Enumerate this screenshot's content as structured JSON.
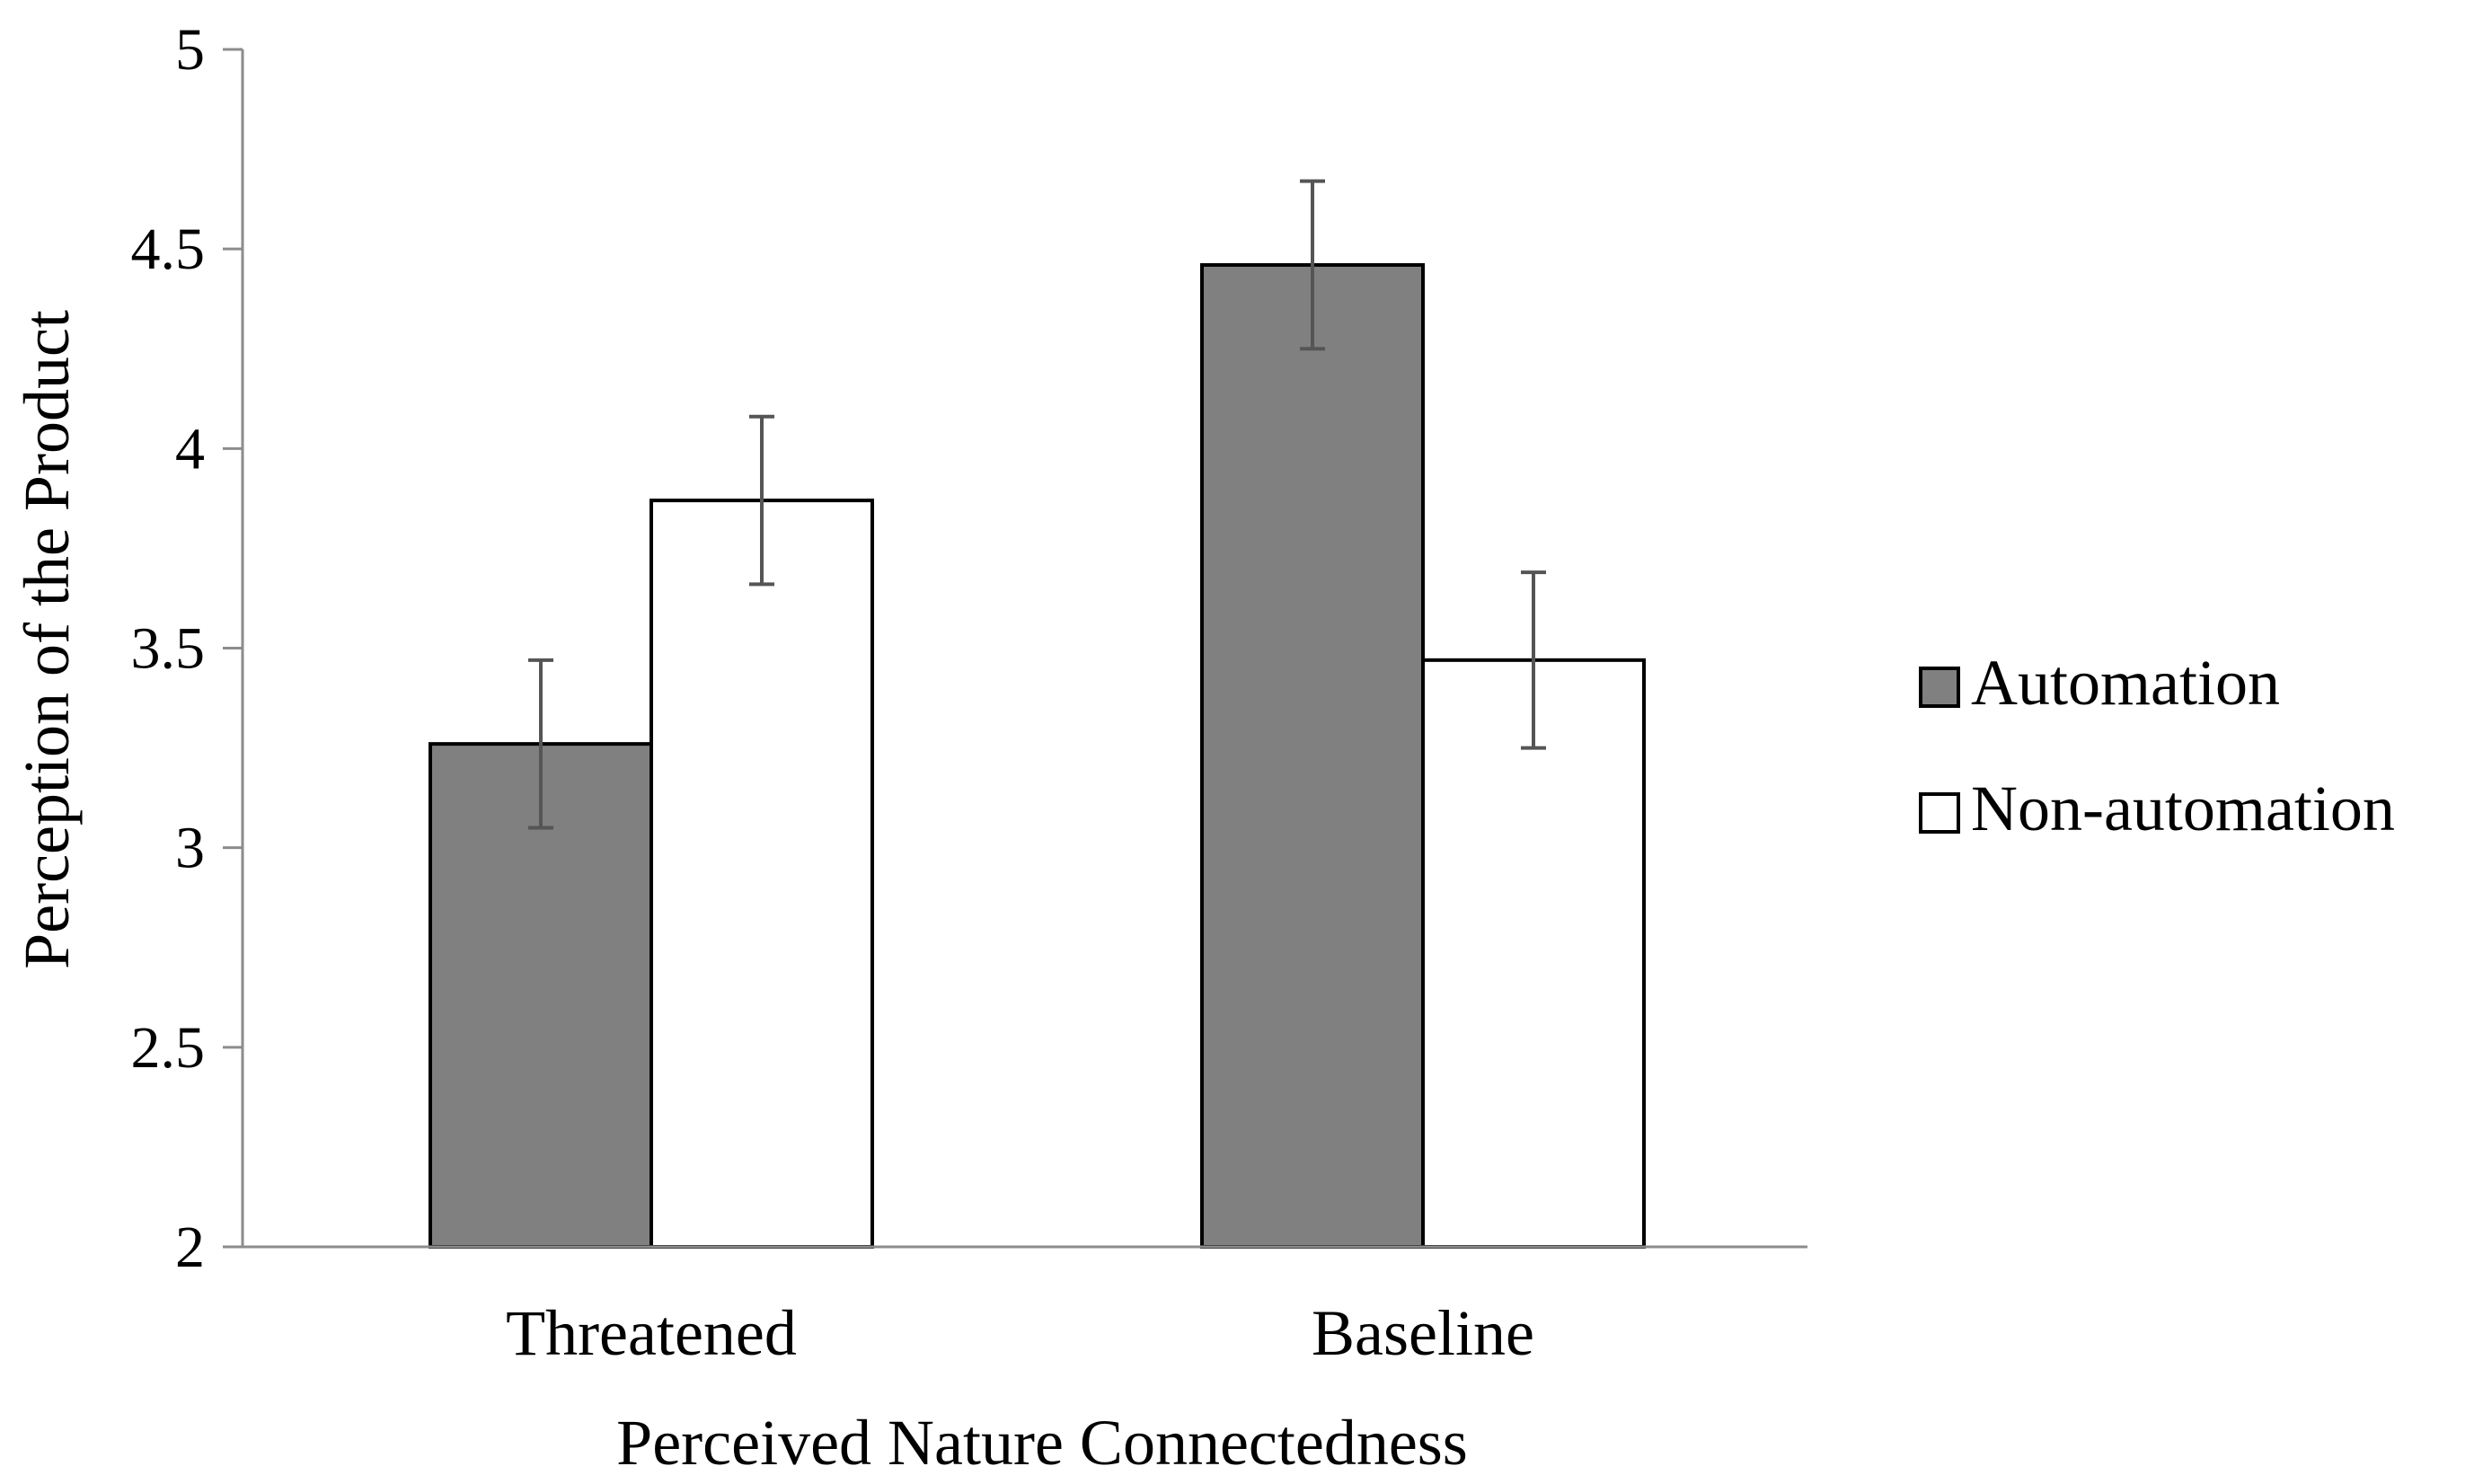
{
  "chart_data": {
    "type": "bar",
    "title": "",
    "xlabel": "Perceived Nature Connectedness",
    "ylabel": "Perception of the Product",
    "categories": [
      "Threatened",
      "Baseline"
    ],
    "series": [
      {
        "name": "Automation",
        "values": [
          3.26,
          4.46
        ],
        "error": [
          0.21,
          0.21
        ],
        "color": "#808080"
      },
      {
        "name": "Non-automation",
        "values": [
          3.87,
          3.47
        ],
        "error": [
          0.21,
          0.22
        ],
        "color": "#ffffff"
      }
    ],
    "ylim": [
      2,
      5
    ],
    "yticks": [
      "2",
      "2.5",
      "3",
      "3.5",
      "4",
      "4.5",
      "5"
    ],
    "grid": false,
    "legend": "right"
  }
}
